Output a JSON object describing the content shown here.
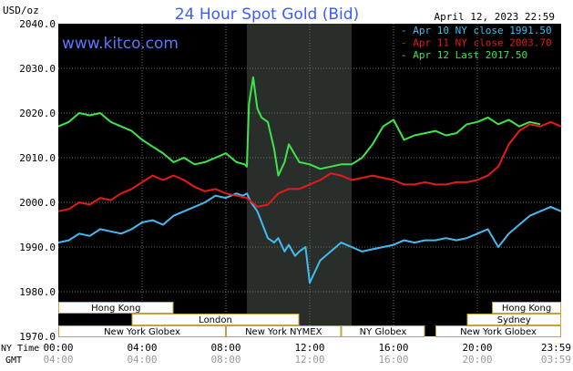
{
  "header": {
    "unit": "USD/oz",
    "title": "24 Hour Spot Gold (Bid)",
    "date": "April 12, 2023 22:59",
    "website": "www.kitco.com"
  },
  "colors": {
    "background": "#000000",
    "grid": "#6e6e6e",
    "axis_text": "#ffffff",
    "title": "#3c5cff",
    "website": "#5a78ff",
    "apr10": "#44bbf0",
    "apr11": "#e51a1a",
    "apr12": "#3ce64a",
    "market_box_fill": "#ffffff",
    "market_box_border": "#c9a13a",
    "market_text": "#000000",
    "shade": "#2a2e2a"
  },
  "chart_data": {
    "type": "line",
    "x_unit": "hours",
    "xlim": [
      0,
      24
    ],
    "ylim": [
      1970,
      2040
    ],
    "y_ticks": [
      "2040.0",
      "2030.0",
      "2020.0",
      "2010.0",
      "2000.0",
      "1990.0",
      "1980.0",
      "1970.0"
    ],
    "x_ticks": [
      "00:00",
      "04:00",
      "08:00",
      "12:00",
      "16:00",
      "20:00",
      "23:59"
    ],
    "gmt_ticks": [
      "04:00",
      "08:00",
      "12:00",
      "16:00",
      "20:00",
      "03:59"
    ],
    "x_axis_label_top": "NY Time",
    "x_axis_label_bottom": "GMT",
    "shade_range": [
      9.0,
      14.0
    ],
    "legend": [
      {
        "text": "Apr 10 NY close 1991.50",
        "color": "#44bbf0"
      },
      {
        "text": "Apr 11 NY close 2003.70",
        "color": "#e51a1a"
      },
      {
        "text": "Apr 12 Last 2017.50",
        "color": "#3ce64a"
      }
    ],
    "series": [
      {
        "key": "apr10",
        "color": "#44bbf0",
        "x": [
          0.0,
          0.5,
          1.0,
          1.5,
          2.0,
          2.5,
          3.0,
          3.5,
          4.0,
          4.5,
          5.0,
          5.5,
          6.0,
          6.5,
          7.0,
          7.5,
          8.0,
          8.5,
          8.8,
          9.0,
          9.2,
          9.5,
          10.0,
          10.3,
          10.5,
          10.8,
          11.0,
          11.3,
          11.5,
          11.8,
          12.0,
          12.5,
          13.0,
          13.5,
          14.0,
          14.5,
          15.0,
          15.5,
          16.0,
          16.5,
          17.0,
          17.5,
          18.0,
          18.5,
          19.0,
          19.5,
          20.0,
          20.5,
          21.0,
          21.5,
          22.0,
          22.5,
          23.0,
          23.5,
          24.0
        ],
        "values": [
          1991,
          1991.5,
          1993,
          1992.5,
          1994,
          1993.5,
          1993,
          1994,
          1995.5,
          1996,
          1995,
          1997,
          1998,
          1999,
          2000,
          2001.5,
          2001,
          2002,
          2001.5,
          2002,
          2000,
          1998,
          1992,
          1991,
          1992,
          1989,
          1990.5,
          1988,
          1989,
          1990,
          1982,
          1987,
          1989,
          1991,
          1990,
          1989,
          1989.5,
          1990,
          1990.5,
          1991.5,
          1991,
          1991.5,
          1991.5,
          1992,
          1991.5,
          1992,
          1993,
          1994,
          1990,
          1993,
          1995,
          1997,
          1998,
          1999,
          1998
        ]
      },
      {
        "key": "apr11",
        "color": "#e51a1a",
        "x": [
          0.0,
          0.5,
          1.0,
          1.5,
          2.0,
          2.5,
          3.0,
          3.5,
          4.0,
          4.5,
          5.0,
          5.5,
          6.0,
          6.5,
          7.0,
          7.5,
          8.0,
          8.5,
          9.0,
          9.5,
          10.0,
          10.5,
          11.0,
          11.5,
          12.0,
          12.5,
          13.0,
          13.5,
          14.0,
          14.5,
          15.0,
          15.5,
          16.0,
          16.5,
          17.0,
          17.5,
          18.0,
          18.5,
          19.0,
          19.5,
          20.0,
          20.5,
          21.0,
          21.5,
          22.0,
          22.5,
          23.0,
          23.5,
          24.0
        ],
        "values": [
          1998,
          1998.5,
          2000,
          1999.5,
          2001,
          2000.5,
          2002,
          2003,
          2004.5,
          2006,
          2005,
          2006,
          2005,
          2003.5,
          2002.5,
          2003,
          2002,
          2001.5,
          2001,
          1999,
          1999.5,
          2002,
          2003,
          2003,
          2004,
          2005,
          2006.5,
          2006,
          2005,
          2005.5,
          2006,
          2005.5,
          2005,
          2004,
          2004,
          2004.5,
          2004,
          2004,
          2004.5,
          2004.5,
          2005,
          2006,
          2008,
          2013,
          2016,
          2017.5,
          2017,
          2018,
          2017
        ]
      },
      {
        "key": "apr12",
        "color": "#3ce64a",
        "x": [
          0.0,
          0.5,
          1.0,
          1.5,
          2.0,
          2.5,
          3.0,
          3.5,
          4.0,
          4.5,
          5.0,
          5.5,
          6.0,
          6.5,
          7.0,
          7.5,
          8.0,
          8.5,
          8.9,
          9.0,
          9.1,
          9.3,
          9.5,
          9.7,
          10.0,
          10.3,
          10.5,
          10.8,
          11.0,
          11.5,
          12.0,
          12.5,
          13.0,
          13.5,
          14.0,
          14.5,
          15.0,
          15.5,
          16.0,
          16.5,
          17.0,
          17.5,
          18.0,
          18.5,
          19.0,
          19.5,
          20.0,
          20.5,
          21.0,
          21.5,
          22.0,
          22.5,
          23.0
        ],
        "values": [
          2017,
          2018,
          2020,
          2019.5,
          2020,
          2018,
          2017,
          2016,
          2014,
          2012.5,
          2011,
          2009,
          2010,
          2008.5,
          2009,
          2010,
          2011,
          2009,
          2008.5,
          2008,
          2022,
          2028,
          2021,
          2019,
          2018,
          2012,
          2006,
          2009,
          2013,
          2009,
          2008.5,
          2007.5,
          2008,
          2008.5,
          2008.5,
          2010,
          2013,
          2017,
          2018.5,
          2014,
          2015,
          2015.5,
          2016,
          2015,
          2015.5,
          2017.5,
          2018,
          2019,
          2017.5,
          2018.5,
          2017,
          2018,
          2017.5
        ]
      }
    ],
    "market_rows": [
      [
        {
          "label": "Hong Kong",
          "start": 0.0,
          "end": 5.5
        },
        {
          "label": "Hong Kong",
          "start": 20.7,
          "end": 24.0
        }
      ],
      [
        {
          "label": "London",
          "start": 3.5,
          "end": 11.5
        },
        {
          "label": "Sydney",
          "start": 19.5,
          "end": 24.0
        }
      ],
      [
        {
          "label": "New York Globex",
          "start": 0.0,
          "end": 8.0
        },
        {
          "label": "New York NYMEX",
          "start": 8.0,
          "end": 13.5
        },
        {
          "label": "NY Globex",
          "start": 13.5,
          "end": 17.5
        },
        {
          "label": "New York Globex",
          "start": 18.0,
          "end": 24.0
        }
      ]
    ]
  }
}
